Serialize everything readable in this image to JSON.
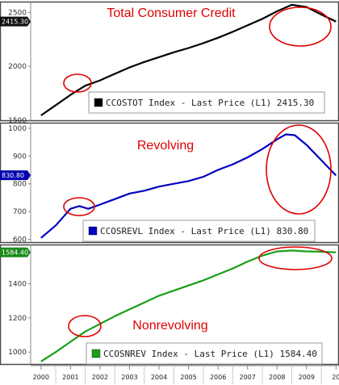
{
  "chart_data": [
    {
      "type": "line",
      "title": "Total Consumer Credit",
      "series_color": "#000000",
      "ylim": [
        1500,
        2600
      ],
      "yticks": [
        "2500",
        "2000",
        "1500"
      ],
      "last_price": "2415.30",
      "legend": "CCOSTOT Index - Last Price (L1) 2415.30",
      "highlights": [
        "2001",
        "2008-2010"
      ],
      "x": [
        2000.0,
        2000.5,
        2001.0,
        2001.5,
        2002.0,
        2002.5,
        2003.0,
        2003.5,
        2004.0,
        2004.5,
        2005.0,
        2005.5,
        2006.0,
        2006.5,
        2007.0,
        2007.5,
        2008.0,
        2008.5,
        2009.0,
        2009.5,
        2010.0
      ],
      "values": [
        1545,
        1640,
        1735,
        1820,
        1870,
        1930,
        1990,
        2040,
        2085,
        2130,
        2170,
        2215,
        2265,
        2320,
        2380,
        2440,
        2510,
        2570,
        2550,
        2480,
        2415
      ]
    },
    {
      "type": "line",
      "title": "Revolving",
      "series_color": "#0000c0",
      "ylim": [
        590,
        1020
      ],
      "yticks": [
        "1000",
        "900",
        "800",
        "700",
        "600"
      ],
      "last_price": "830.80",
      "legend": "CCOSREVL Index - Last Price (L1) 830.80",
      "highlights": [
        "2001",
        "2008-2010"
      ],
      "x": [
        2000.0,
        2000.5,
        2001.0,
        2001.3,
        2001.6,
        2002.0,
        2002.5,
        2003.0,
        2003.5,
        2004.0,
        2004.5,
        2005.0,
        2005.5,
        2006.0,
        2006.5,
        2007.0,
        2007.5,
        2008.0,
        2008.3,
        2008.6,
        2009.0,
        2009.5,
        2010.0
      ],
      "values": [
        605,
        650,
        710,
        720,
        710,
        725,
        745,
        765,
        775,
        790,
        800,
        810,
        825,
        850,
        870,
        895,
        925,
        960,
        978,
        975,
        940,
        885,
        830
      ]
    },
    {
      "type": "line",
      "title": "Nonrevolving",
      "series_color": "#1a9e1a",
      "ylim": [
        930,
        1630
      ],
      "yticks": [
        "1400",
        "1200",
        "1000"
      ],
      "last_price": "1584.40",
      "legend": "CCOSNREV Index - Last Price (L1) 1584.40",
      "highlights": [
        "2001",
        "2008-2010"
      ],
      "x": [
        2000.0,
        2000.5,
        2001.0,
        2001.5,
        2002.0,
        2002.5,
        2003.0,
        2003.5,
        2004.0,
        2004.5,
        2005.0,
        2005.5,
        2006.0,
        2006.5,
        2007.0,
        2007.5,
        2008.0,
        2008.5,
        2009.0,
        2009.5,
        2010.0
      ],
      "values": [
        945,
        1000,
        1060,
        1120,
        1165,
        1210,
        1250,
        1290,
        1330,
        1360,
        1390,
        1420,
        1455,
        1490,
        1530,
        1565,
        1590,
        1595,
        1590,
        1588,
        1584
      ]
    }
  ],
  "x_axis": {
    "ticks": [
      "2000",
      "2001",
      "2002",
      "2003",
      "2004",
      "2005",
      "2006",
      "2007",
      "2008",
      "2009",
      "20"
    ],
    "xlim": [
      1999.65,
      2010.1
    ]
  }
}
